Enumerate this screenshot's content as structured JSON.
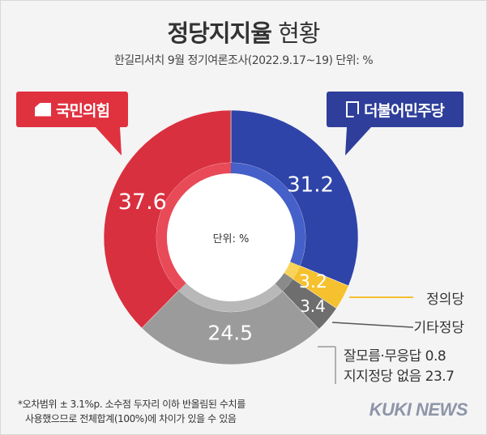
{
  "header": {
    "title_bold": "정당지지율",
    "title_rest": "현황",
    "subtitle": "한길리서치 9월 정기여론조사(2022.9.17~19) 단위: %"
  },
  "party_labels": {
    "left": "국민의힘",
    "right": "더불어민주당"
  },
  "chart_data": {
    "type": "pie",
    "donut": true,
    "center_label": "단위: %",
    "slices": [
      {
        "name": "더불어민주당",
        "value": 31.2,
        "label": "31.2",
        "color": "#2f44a8",
        "inner_color": "#4560c8"
      },
      {
        "name": "정의당",
        "value": 3.2,
        "label": "3.2",
        "color": "#f6c12e",
        "inner_color": "#f8d45a"
      },
      {
        "name": "기타정당",
        "value": 3.4,
        "label": "3.4",
        "color": "#6e6e6e",
        "inner_color": "#8a8a8a"
      },
      {
        "name": "잘모름·무응답 0.8 / 지지정당 없음 23.7",
        "value": 24.5,
        "label": "24.5",
        "color": "#9b9b9b",
        "inner_color": "#b8b8b8"
      },
      {
        "name": "국민의힘",
        "value": 37.6,
        "label": "37.6",
        "color": "#d9303f",
        "inner_color": "#e84a58"
      }
    ],
    "callouts": {
      "justice": "정의당",
      "others": "기타정당",
      "none_line1": "잘모름·무응답 0.8",
      "none_line2": "지지정당 없음 23.7"
    }
  },
  "footnote": {
    "line1": "*오차범위 ± 3.1%p. 소수점 두자리 이하 반올림된 수치를",
    "line2": "사용했으므로 전체합계(100%)에 차이가 있을 수 있음"
  },
  "brand": "KUKI NEWS"
}
